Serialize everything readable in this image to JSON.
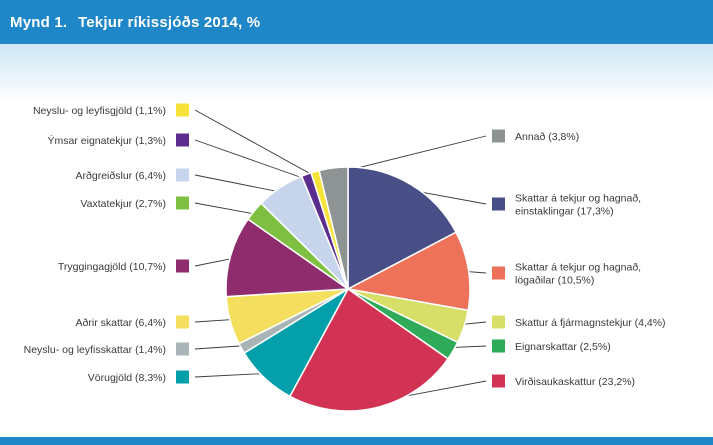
{
  "header": {
    "figure_number": "Mynd 1.",
    "title": "Tekjur ríkissjóðs 2014, %"
  },
  "colors": {
    "header": "#1f86c7"
  },
  "chart_data": {
    "type": "pie",
    "title": "Tekjur ríkissjóðs 2014, %",
    "start": "12 o'clock",
    "direction": "clockwise",
    "slices": [
      {
        "label_lines": [
          "Skattar á tekjur og hagnað,",
          "einstaklingar (17,3%)"
        ],
        "value": 17.3,
        "color": "#474f86",
        "side": "right"
      },
      {
        "label_lines": [
          "Skattar á tekjur og hagnað,",
          "lögaðilar (10,5%)"
        ],
        "value": 10.5,
        "color": "#ee725a",
        "side": "right"
      },
      {
        "label_lines": [
          "Skattur á fjármagnstekjur (4,4%)"
        ],
        "value": 4.4,
        "color": "#d8df68",
        "side": "right"
      },
      {
        "label_lines": [
          "Eignarskattar (2,5%)"
        ],
        "value": 2.5,
        "color": "#2eaa58",
        "side": "right"
      },
      {
        "label_lines": [
          "Virðisaukaskattur (23,2%)"
        ],
        "value": 23.2,
        "color": "#d23354",
        "side": "right"
      },
      {
        "label_lines": [
          "Vörugjöld (8,3%)"
        ],
        "value": 8.3,
        "color": "#03a0ab",
        "side": "left"
      },
      {
        "label_lines": [
          "Neyslu- og leyfisskattar (1,4%)"
        ],
        "value": 1.4,
        "color": "#a9b4b6",
        "side": "left"
      },
      {
        "label_lines": [
          "Aðrir skattar (6,4%)"
        ],
        "value": 6.4,
        "color": "#f4df5e",
        "side": "left"
      },
      {
        "label_lines": [
          "Tryggingagjöld (10,7%)"
        ],
        "value": 10.7,
        "color": "#8f2c6d",
        "side": "left"
      },
      {
        "label_lines": [
          "Vaxtatekjur (2,7%)"
        ],
        "value": 2.7,
        "color": "#7fc043",
        "side": "left"
      },
      {
        "label_lines": [
          "Arðgreiðslur (6,4%)"
        ],
        "value": 6.4,
        "color": "#c6d5ec",
        "side": "left"
      },
      {
        "label_lines": [
          "Ýmsar eignatekjur (1,3%)"
        ],
        "value": 1.3,
        "color": "#5b2d8e",
        "side": "left"
      },
      {
        "label_lines": [
          "Neyslu- og leyfisgjöld (1,1%)"
        ],
        "value": 1.1,
        "color": "#f7e23a",
        "side": "left"
      },
      {
        "label_lines": [
          "Annað (3,8%)"
        ],
        "value": 3.8,
        "color": "#8e9394",
        "side": "right"
      }
    ]
  }
}
